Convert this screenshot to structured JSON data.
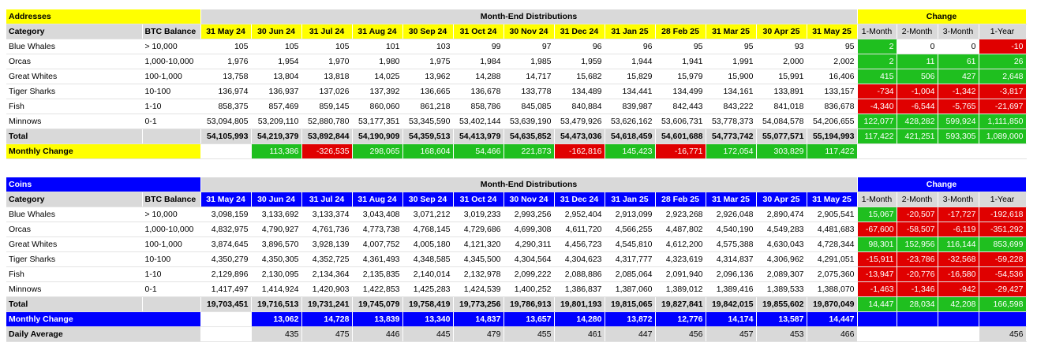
{
  "months": [
    "31 May 24",
    "30 Jun 24",
    "31 Jul 24",
    "31 Aug 24",
    "30 Sep 24",
    "31 Oct 24",
    "30 Nov 24",
    "31 Dec 24",
    "31 Jan 25",
    "28 Feb 25",
    "31 Mar 25",
    "30 Apr 25",
    "31 May 25"
  ],
  "change_headers": [
    "1-Month",
    "2-Month",
    "3-Month",
    "1-Year"
  ],
  "addresses": {
    "title": "Addresses",
    "group_header": "Month-End Distributions",
    "change_header": "Change",
    "category_header": "Category",
    "balance_header": "BTC Balance",
    "rows": [
      {
        "category": "Blue Whales",
        "balance": "> 10,000",
        "values": [
          "105",
          "105",
          "105",
          "101",
          "103",
          "99",
          "97",
          "96",
          "96",
          "95",
          "95",
          "93",
          "95"
        ],
        "change": [
          {
            "v": "2",
            "s": "pos"
          },
          {
            "v": "0",
            "s": "wh"
          },
          {
            "v": "0",
            "s": "wh"
          },
          {
            "v": "-10",
            "s": "neg"
          }
        ]
      },
      {
        "category": "Orcas",
        "balance": "1,000-10,000",
        "values": [
          "1,976",
          "1,954",
          "1,970",
          "1,980",
          "1,975",
          "1,984",
          "1,985",
          "1,959",
          "1,944",
          "1,941",
          "1,991",
          "2,000",
          "2,002"
        ],
        "change": [
          {
            "v": "2",
            "s": "pos"
          },
          {
            "v": "11",
            "s": "pos"
          },
          {
            "v": "61",
            "s": "pos"
          },
          {
            "v": "26",
            "s": "pos"
          }
        ]
      },
      {
        "category": "Great Whites",
        "balance": "100-1,000",
        "values": [
          "13,758",
          "13,804",
          "13,818",
          "14,025",
          "13,962",
          "14,288",
          "14,717",
          "15,682",
          "15,829",
          "15,979",
          "15,900",
          "15,991",
          "16,406"
        ],
        "change": [
          {
            "v": "415",
            "s": "pos"
          },
          {
            "v": "506",
            "s": "pos"
          },
          {
            "v": "427",
            "s": "pos"
          },
          {
            "v": "2,648",
            "s": "pos"
          }
        ]
      },
      {
        "category": "Tiger Sharks",
        "balance": "10-100",
        "values": [
          "136,974",
          "136,937",
          "137,026",
          "137,392",
          "136,665",
          "136,678",
          "133,778",
          "134,489",
          "134,441",
          "134,499",
          "134,161",
          "133,891",
          "133,157"
        ],
        "change": [
          {
            "v": "-734",
            "s": "neg"
          },
          {
            "v": "-1,004",
            "s": "neg"
          },
          {
            "v": "-1,342",
            "s": "neg"
          },
          {
            "v": "-3,817",
            "s": "neg"
          }
        ]
      },
      {
        "category": "Fish",
        "balance": "1-10",
        "values": [
          "858,375",
          "857,469",
          "859,145",
          "860,060",
          "861,218",
          "858,786",
          "845,085",
          "840,884",
          "839,987",
          "842,443",
          "843,222",
          "841,018",
          "836,678"
        ],
        "change": [
          {
            "v": "-4,340",
            "s": "neg"
          },
          {
            "v": "-6,544",
            "s": "neg"
          },
          {
            "v": "-5,765",
            "s": "neg"
          },
          {
            "v": "-21,697",
            "s": "neg"
          }
        ]
      },
      {
        "category": "Minnows",
        "balance": "0-1",
        "values": [
          "53,094,805",
          "53,209,110",
          "52,880,780",
          "53,177,351",
          "53,345,590",
          "53,402,144",
          "53,639,190",
          "53,479,926",
          "53,626,162",
          "53,606,731",
          "53,778,373",
          "54,084,578",
          "54,206,655"
        ],
        "change": [
          {
            "v": "122,077",
            "s": "pos"
          },
          {
            "v": "428,282",
            "s": "pos"
          },
          {
            "v": "599,924",
            "s": "pos"
          },
          {
            "v": "1,111,850",
            "s": "pos"
          }
        ]
      }
    ],
    "total": {
      "label": "Total",
      "values": [
        "54,105,993",
        "54,219,379",
        "53,892,844",
        "54,190,909",
        "54,359,513",
        "54,413,979",
        "54,635,852",
        "54,473,036",
        "54,618,459",
        "54,601,688",
        "54,773,742",
        "55,077,571",
        "55,194,993"
      ],
      "change": [
        {
          "v": "117,422",
          "s": "pos"
        },
        {
          "v": "421,251",
          "s": "pos"
        },
        {
          "v": "593,305",
          "s": "pos"
        },
        {
          "v": "1,089,000",
          "s": "pos"
        }
      ]
    },
    "monthly_change": {
      "label": "Monthly Change",
      "values": [
        {
          "v": "",
          "s": "wh"
        },
        {
          "v": "113,386",
          "s": "pos"
        },
        {
          "v": "-326,535",
          "s": "neg"
        },
        {
          "v": "298,065",
          "s": "pos"
        },
        {
          "v": "168,604",
          "s": "pos"
        },
        {
          "v": "54,466",
          "s": "pos"
        },
        {
          "v": "221,873",
          "s": "pos"
        },
        {
          "v": "-162,816",
          "s": "neg"
        },
        {
          "v": "145,423",
          "s": "pos"
        },
        {
          "v": "-16,771",
          "s": "neg"
        },
        {
          "v": "172,054",
          "s": "pos"
        },
        {
          "v": "303,829",
          "s": "pos"
        },
        {
          "v": "117,422",
          "s": "pos"
        }
      ]
    }
  },
  "coins": {
    "title": "Coins",
    "group_header": "Month-End Distributions",
    "change_header": "Change",
    "category_header": "Category",
    "balance_header": "BTC Balance",
    "rows": [
      {
        "category": "Blue Whales",
        "balance": "> 10,000",
        "values": [
          "3,098,159",
          "3,133,692",
          "3,133,374",
          "3,043,408",
          "3,071,212",
          "3,019,233",
          "2,993,256",
          "2,952,404",
          "2,913,099",
          "2,923,268",
          "2,926,048",
          "2,890,474",
          "2,905,541"
        ],
        "change": [
          {
            "v": "15,067",
            "s": "pos"
          },
          {
            "v": "-20,507",
            "s": "neg"
          },
          {
            "v": "-17,727",
            "s": "neg"
          },
          {
            "v": "-192,618",
            "s": "neg"
          }
        ]
      },
      {
        "category": "Orcas",
        "balance": "1,000-10,000",
        "values": [
          "4,832,975",
          "4,790,927",
          "4,761,736",
          "4,773,738",
          "4,768,145",
          "4,729,686",
          "4,699,308",
          "4,611,720",
          "4,566,255",
          "4,487,802",
          "4,540,190",
          "4,549,283",
          "4,481,683"
        ],
        "change": [
          {
            "v": "-67,600",
            "s": "neg"
          },
          {
            "v": "-58,507",
            "s": "neg"
          },
          {
            "v": "-6,119",
            "s": "neg"
          },
          {
            "v": "-351,292",
            "s": "neg"
          }
        ]
      },
      {
        "category": "Great Whites",
        "balance": "100-1,000",
        "values": [
          "3,874,645",
          "3,896,570",
          "3,928,139",
          "4,007,752",
          "4,005,180",
          "4,121,320",
          "4,290,311",
          "4,456,723",
          "4,545,810",
          "4,612,200",
          "4,575,388",
          "4,630,043",
          "4,728,344"
        ],
        "change": [
          {
            "v": "98,301",
            "s": "pos"
          },
          {
            "v": "152,956",
            "s": "pos"
          },
          {
            "v": "116,144",
            "s": "pos"
          },
          {
            "v": "853,699",
            "s": "pos"
          }
        ]
      },
      {
        "category": "Tiger Sharks",
        "balance": "10-100",
        "values": [
          "4,350,279",
          "4,350,305",
          "4,352,725",
          "4,361,493",
          "4,348,585",
          "4,345,500",
          "4,304,564",
          "4,304,623",
          "4,317,777",
          "4,323,619",
          "4,314,837",
          "4,306,962",
          "4,291,051"
        ],
        "change": [
          {
            "v": "-15,911",
            "s": "neg"
          },
          {
            "v": "-23,786",
            "s": "neg"
          },
          {
            "v": "-32,568",
            "s": "neg"
          },
          {
            "v": "-59,228",
            "s": "neg"
          }
        ]
      },
      {
        "category": "Fish",
        "balance": "1-10",
        "values": [
          "2,129,896",
          "2,130,095",
          "2,134,364",
          "2,135,835",
          "2,140,014",
          "2,132,978",
          "2,099,222",
          "2,088,886",
          "2,085,064",
          "2,091,940",
          "2,096,136",
          "2,089,307",
          "2,075,360"
        ],
        "change": [
          {
            "v": "-13,947",
            "s": "neg"
          },
          {
            "v": "-20,776",
            "s": "neg"
          },
          {
            "v": "-16,580",
            "s": "neg"
          },
          {
            "v": "-54,536",
            "s": "neg"
          }
        ]
      },
      {
        "category": "Minnows",
        "balance": "0-1",
        "values": [
          "1,417,497",
          "1,414,924",
          "1,420,903",
          "1,422,853",
          "1,425,283",
          "1,424,539",
          "1,400,252",
          "1,386,837",
          "1,387,060",
          "1,389,012",
          "1,389,416",
          "1,389,533",
          "1,388,070"
        ],
        "change": [
          {
            "v": "-1,463",
            "s": "neg"
          },
          {
            "v": "-1,346",
            "s": "neg"
          },
          {
            "v": "-942",
            "s": "neg"
          },
          {
            "v": "-29,427",
            "s": "neg"
          }
        ]
      }
    ],
    "total": {
      "label": "Total",
      "values": [
        "19,703,451",
        "19,716,513",
        "19,731,241",
        "19,745,079",
        "19,758,419",
        "19,773,256",
        "19,786,913",
        "19,801,193",
        "19,815,065",
        "19,827,841",
        "19,842,015",
        "19,855,602",
        "19,870,049"
      ],
      "change": [
        {
          "v": "14,447",
          "s": "pos"
        },
        {
          "v": "28,034",
          "s": "pos"
        },
        {
          "v": "42,208",
          "s": "pos"
        },
        {
          "v": "166,598",
          "s": "pos"
        }
      ]
    },
    "monthly_change": {
      "label": "Monthly Change",
      "values": [
        {
          "v": "",
          "s": "wh"
        },
        {
          "v": "13,062",
          "s": "bl"
        },
        {
          "v": "14,728",
          "s": "bl"
        },
        {
          "v": "13,839",
          "s": "bl"
        },
        {
          "v": "13,340",
          "s": "bl"
        },
        {
          "v": "14,837",
          "s": "bl"
        },
        {
          "v": "13,657",
          "s": "bl"
        },
        {
          "v": "14,280",
          "s": "bl"
        },
        {
          "v": "13,872",
          "s": "bl"
        },
        {
          "v": "12,776",
          "s": "bl"
        },
        {
          "v": "14,174",
          "s": "bl"
        },
        {
          "v": "13,587",
          "s": "bl"
        },
        {
          "v": "14,447",
          "s": "bl"
        }
      ]
    },
    "daily_average": {
      "label": "Daily Average",
      "values": [
        "",
        "435",
        "475",
        "446",
        "445",
        "479",
        "455",
        "461",
        "447",
        "456",
        "457",
        "453",
        "466"
      ],
      "year_value": "456"
    }
  }
}
